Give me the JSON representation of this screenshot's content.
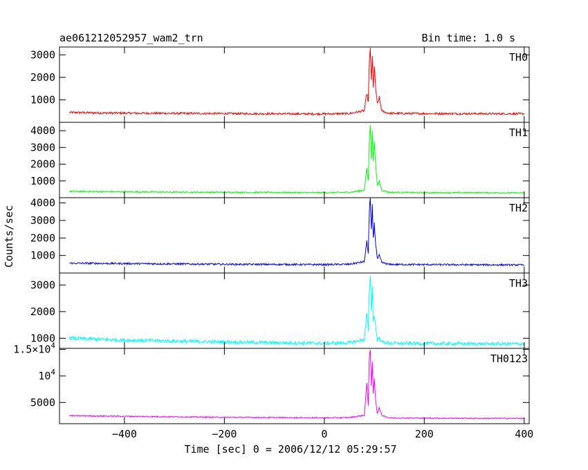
{
  "chart_data": {
    "type": "line",
    "title": "ae061212052957_wam2_trn",
    "subtitle": "Bin time: 1.0 s",
    "xlabel": "Time [sec] 0 = 2006/12/12 05:29:57",
    "ylabel": "Counts/sec",
    "xlim": [
      -530,
      410
    ],
    "xticks": [
      -400,
      -200,
      0,
      200,
      400
    ],
    "grid": false,
    "panels": [
      {
        "name": "TH0",
        "color": "#ff0000",
        "ylim": [
          0,
          3350
        ],
        "yticks": [
          {
            "v": 1000,
            "label": "1000"
          },
          {
            "v": 2000,
            "label": "2000"
          },
          {
            "v": 3000,
            "label": "3000"
          }
        ],
        "x": [
          -510,
          -450,
          -400,
          -300,
          -200,
          -100,
          0,
          50,
          80,
          85,
          88,
          90,
          92,
          94,
          96,
          98,
          100,
          103,
          106,
          110,
          115,
          130,
          200,
          300,
          400
        ],
        "y": [
          440,
          420,
          410,
          400,
          390,
          380,
          375,
          390,
          520,
          1300,
          900,
          2600,
          3350,
          1800,
          2900,
          1600,
          2450,
          1500,
          800,
          1100,
          500,
          400,
          390,
          385,
          380
        ]
      },
      {
        "name": "TH1",
        "color": "#00ff00",
        "ylim": [
          0,
          4500
        ],
        "yticks": [
          {
            "v": 1000,
            "label": "1000"
          },
          {
            "v": 2000,
            "label": "2000"
          },
          {
            "v": 3000,
            "label": "3000"
          },
          {
            "v": 4000,
            "label": "4000"
          }
        ],
        "x": [
          -510,
          -450,
          -400,
          -300,
          -200,
          -100,
          0,
          50,
          80,
          85,
          88,
          90,
          92,
          94,
          96,
          98,
          100,
          103,
          106,
          110,
          115,
          130,
          200,
          300,
          400
        ],
        "y": [
          380,
          360,
          350,
          330,
          320,
          310,
          300,
          320,
          450,
          1700,
          1000,
          3300,
          4450,
          2400,
          3900,
          2200,
          3400,
          1900,
          700,
          1000,
          450,
          320,
          300,
          300,
          290
        ]
      },
      {
        "name": "TH2",
        "color": "#0000ff",
        "ylim": [
          0,
          4300
        ],
        "yticks": [
          {
            "v": 1000,
            "label": "1000"
          },
          {
            "v": 2000,
            "label": "2000"
          },
          {
            "v": 3000,
            "label": "3000"
          },
          {
            "v": 4000,
            "label": "4000"
          }
        ],
        "x": [
          -510,
          -450,
          -400,
          -300,
          -200,
          -100,
          0,
          50,
          80,
          85,
          88,
          90,
          92,
          94,
          96,
          98,
          100,
          103,
          106,
          110,
          115,
          130,
          200,
          300,
          400
        ],
        "y": [
          560,
          550,
          540,
          520,
          500,
          490,
          480,
          500,
          650,
          1800,
          1100,
          3500,
          4300,
          2400,
          3800,
          2000,
          2800,
          1600,
          800,
          1000,
          600,
          490,
          480,
          470,
          460
        ]
      },
      {
        "name": "TH3",
        "color": "#00ffff",
        "ylim": [
          620,
          3450
        ],
        "yticks": [
          {
            "v": 1000,
            "label": "1000"
          },
          {
            "v": 2000,
            "label": "2000"
          },
          {
            "v": 3000,
            "label": "3000"
          }
        ],
        "x": [
          -510,
          -450,
          -400,
          -300,
          -200,
          -100,
          0,
          50,
          80,
          85,
          88,
          90,
          92,
          94,
          96,
          98,
          100,
          103,
          106,
          110,
          115,
          130,
          200,
          300,
          400
        ],
        "y": [
          1000,
          960,
          930,
          890,
          860,
          830,
          810,
          830,
          950,
          1900,
          1300,
          2700,
          3450,
          2100,
          2900,
          1700,
          1850,
          1400,
          950,
          1000,
          870,
          810,
          800,
          790,
          790
        ]
      },
      {
        "name": "TH0123",
        "color": "#ff00ff",
        "ylim": [
          1000,
          15200
        ],
        "yticks": [
          {
            "v": 5000,
            "label": "5000"
          },
          {
            "v": 10000,
            "base": "10",
            "exp": "4"
          },
          {
            "v": 15000,
            "base": "1.5×10",
            "exp": "4"
          }
        ],
        "x": [
          -510,
          -450,
          -400,
          -300,
          -200,
          -100,
          0,
          50,
          80,
          85,
          88,
          90,
          92,
          94,
          96,
          98,
          100,
          103,
          106,
          110,
          115,
          130,
          200,
          300,
          400
        ],
        "y": [
          2500,
          2450,
          2400,
          2300,
          2200,
          2150,
          2100,
          2150,
          2600,
          8500,
          4500,
          13500,
          15200,
          8000,
          12800,
          6500,
          9500,
          5200,
          3000,
          4000,
          2600,
          2100,
          2050,
          2000,
          2000
        ]
      }
    ]
  }
}
